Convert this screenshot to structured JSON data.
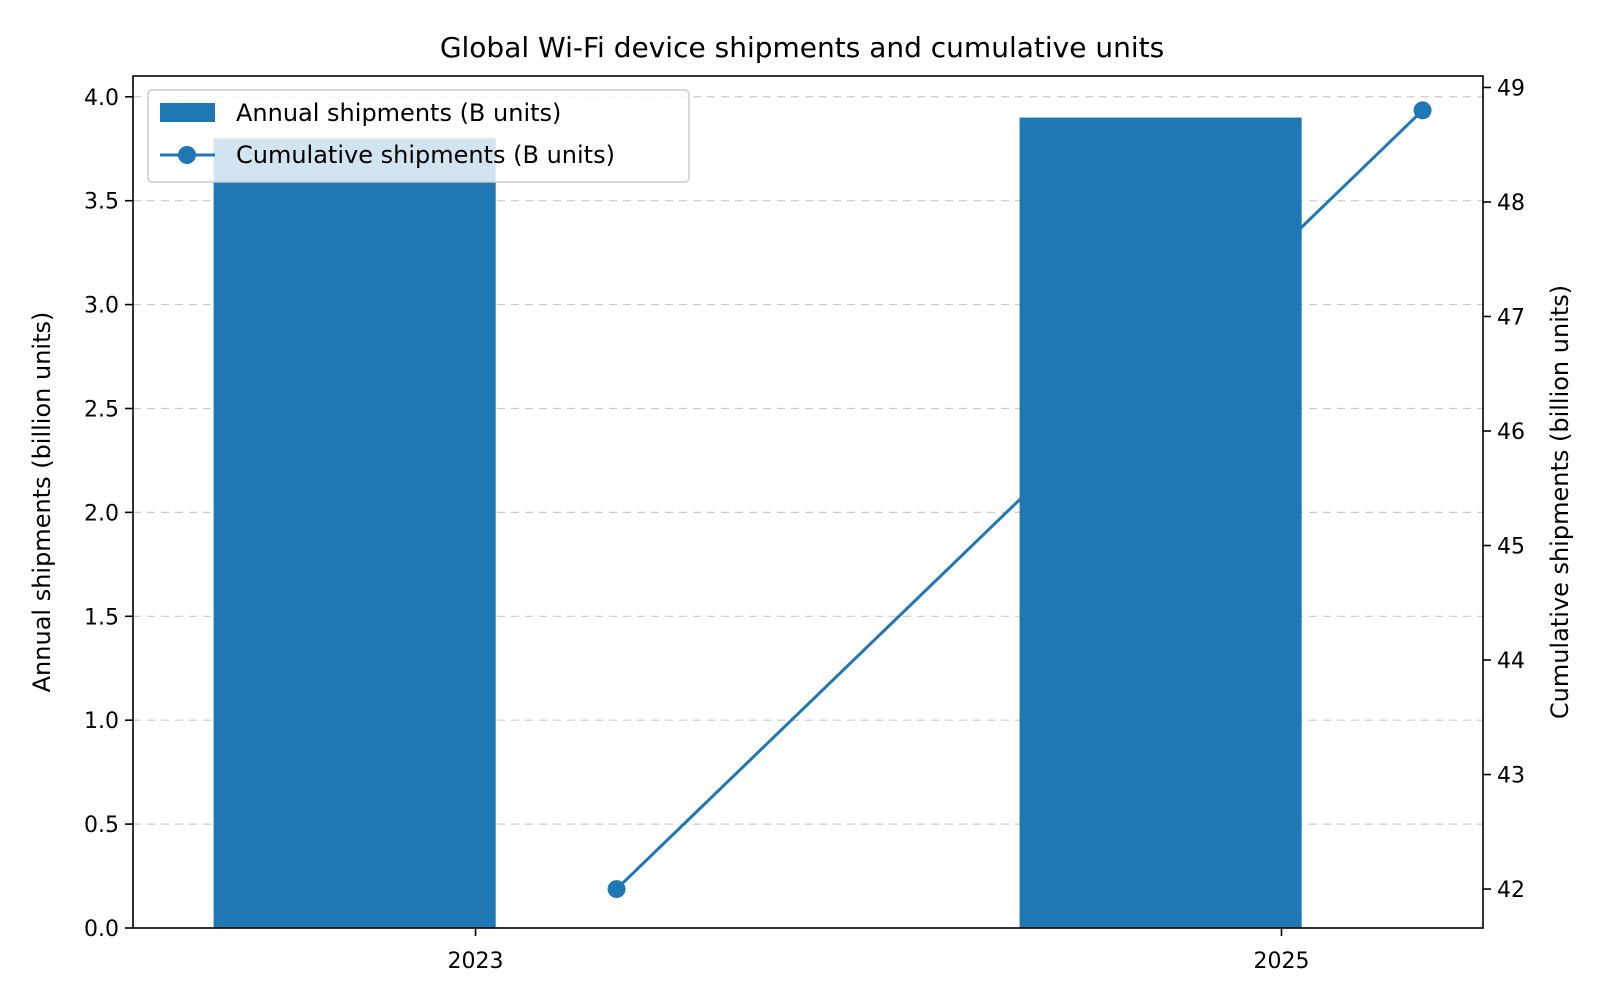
{
  "chart_data": {
    "type": "bar",
    "title": "Global Wi-Fi device shipments and cumulative units",
    "x_ticks": [
      "2023",
      "2025"
    ],
    "series": [
      {
        "name": "Annual shipments (B units)",
        "kind": "bar",
        "axis": "left",
        "x": [
          2022.7,
          2024.7
        ],
        "values": [
          3.8,
          3.9
        ]
      },
      {
        "name": "Cumulative shipments (B units)",
        "kind": "line",
        "axis": "right",
        "x": [
          2023.35,
          2025.35
        ],
        "values": [
          42.0,
          48.8
        ]
      }
    ],
    "ylabel_left": "Annual shipments (billion units)",
    "ylabel_right": "Cumulative shipments (billion units)",
    "ylim_left": [
      0,
      4.1
    ],
    "ylim_right": [
      41.66,
      49.1
    ],
    "yticks_left": [
      "0.0",
      "0.5",
      "1.0",
      "1.5",
      "2.0",
      "2.5",
      "3.0",
      "3.5",
      "4.0"
    ],
    "yticks_right": [
      "42",
      "43",
      "44",
      "45",
      "46",
      "47",
      "48",
      "49"
    ],
    "xlim": [
      2022.15,
      2025.5
    ],
    "grid": "horizontal dashed",
    "legend_position": "top-left",
    "colors": {
      "bar": "#1f77b4",
      "line": "#1f77b4"
    }
  }
}
